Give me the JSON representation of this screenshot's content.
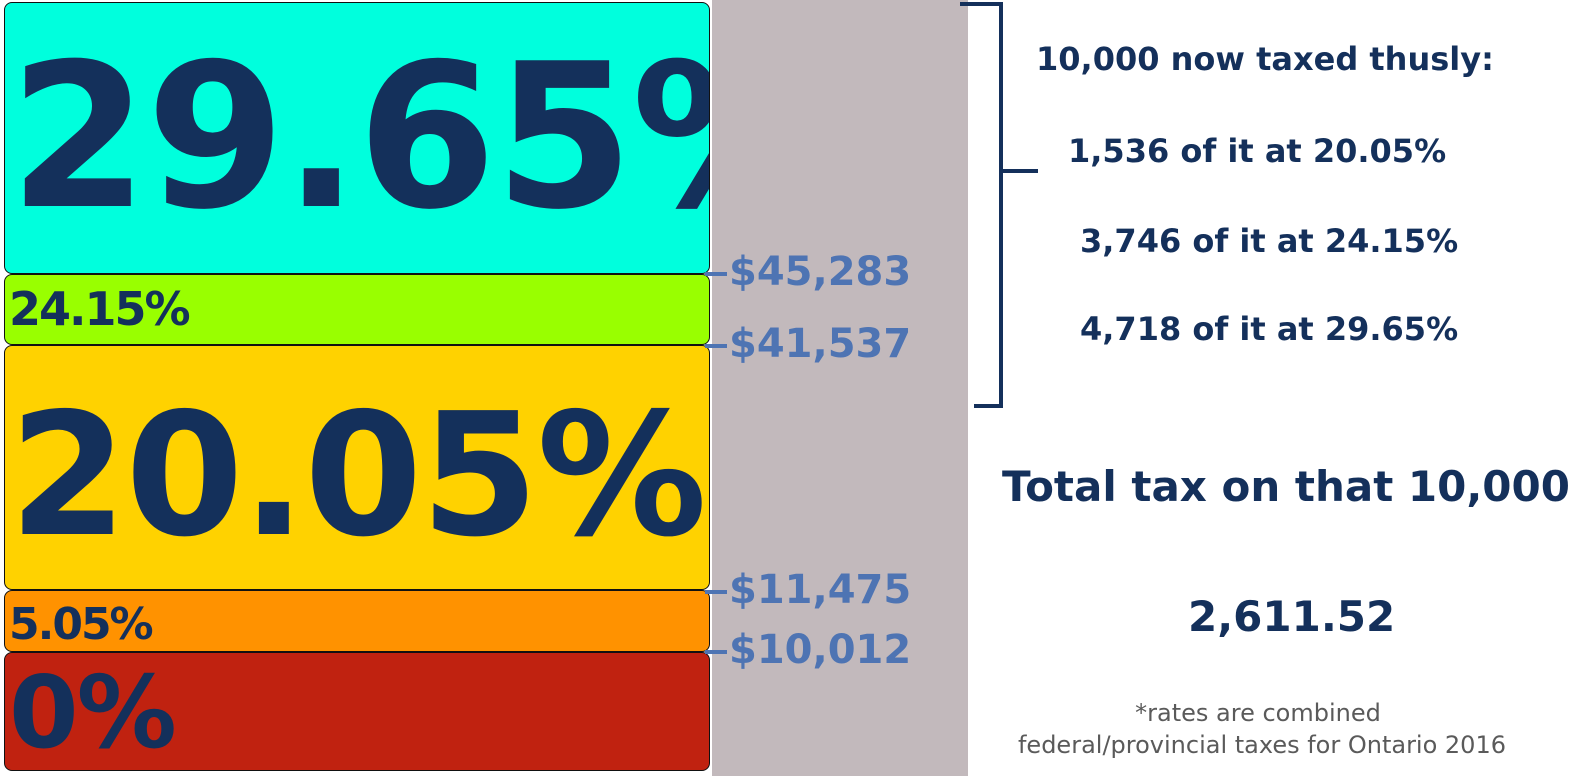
{
  "brackets": [
    {
      "rate": "29.65%",
      "color": "#00ffdd"
    },
    {
      "rate": "24.15%",
      "color": "#99ff00"
    },
    {
      "rate": "20.05%",
      "color": "#ffd200"
    },
    {
      "rate": "5.05%",
      "color": "#ff9200"
    },
    {
      "rate": "0%",
      "color": "#c02210"
    }
  ],
  "thresholds": [
    "$45,283",
    "$41,537",
    "$11,475",
    "$10,012"
  ],
  "breakdown": {
    "heading": "10,000 now taxed thusly:",
    "lines": [
      "1,536 of it at 20.05%",
      "3,746 of it at 24.15%",
      "4,718 of it at 29.65%"
    ]
  },
  "total": {
    "label": "Total tax on that 10,000:",
    "value": "2,611.52"
  },
  "note": {
    "line1": "*rates are combined",
    "line2": "federal/provincial taxes for Ontario 2016"
  }
}
